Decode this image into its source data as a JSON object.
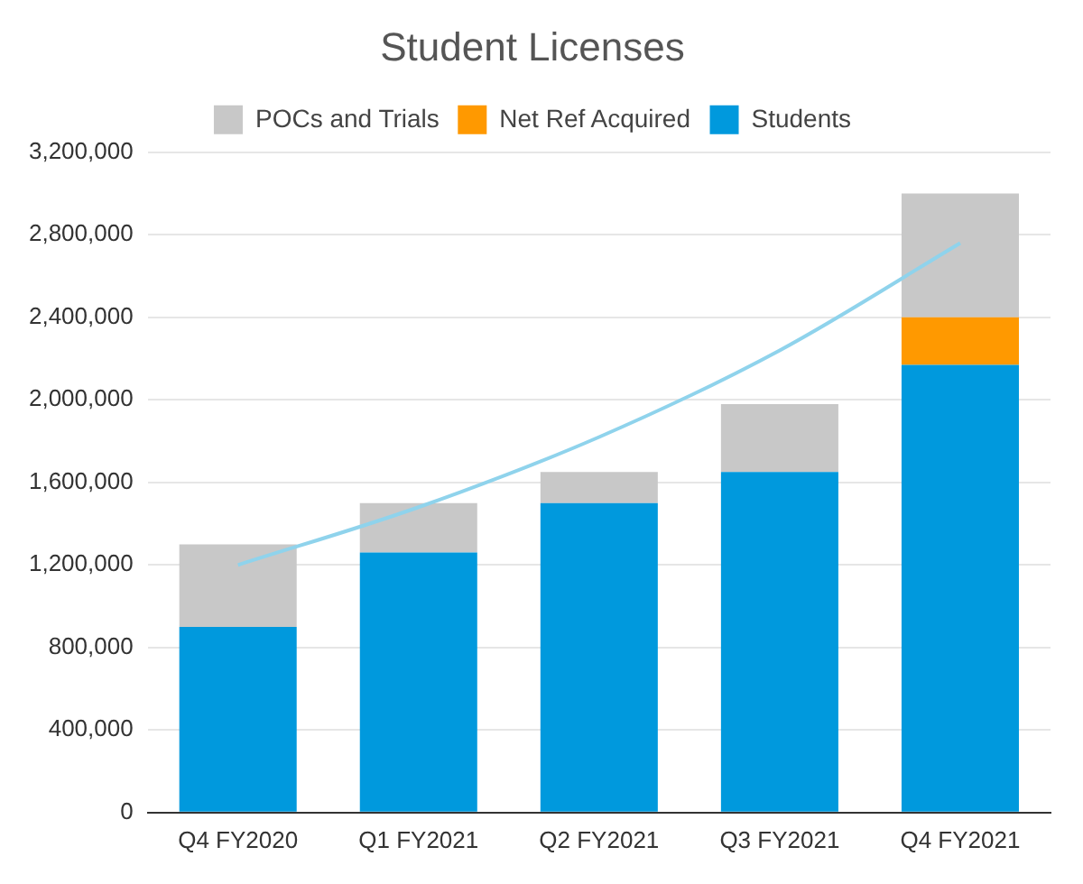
{
  "chart_data": {
    "type": "bar",
    "title": "Student Licenses",
    "stacked": true,
    "legend": "top",
    "grid": "y",
    "categories": [
      "Q4 FY2020",
      "Q1 FY2021",
      "Q2 FY2021",
      "Q3 FY2021",
      "Q4 FY2021"
    ],
    "series": [
      {
        "name": "Students",
        "color": "#0099dd",
        "values": [
          900000,
          1260000,
          1500000,
          1650000,
          2170000
        ]
      },
      {
        "name": "Net Ref Acquired",
        "color": "#ff9900",
        "values": [
          0,
          0,
          0,
          0,
          230000
        ]
      },
      {
        "name": "POCs and Trials",
        "color": "#c8c8c8",
        "values": [
          400000,
          240000,
          150000,
          330000,
          600000
        ]
      },
      {
        "type": "line",
        "color": "#8fd3ec",
        "marker": "none",
        "values": [
          1200000,
          1480000,
          1820000,
          2240000,
          2760000
        ]
      }
    ],
    "ylim": [
      0,
      3200000
    ],
    "yticks": [
      0,
      {
        "value": 400000,
        "label": "400,000"
      },
      {
        "value": 800000,
        "label": "800,000"
      },
      {
        "value": 1200000,
        "label": "1,200,000"
      },
      {
        "value": 1600000,
        "label": "1,600,000"
      },
      {
        "value": 2000000,
        "label": "2,000,000"
      },
      {
        "value": 2400000,
        "label": "2,400,000"
      },
      {
        "value": 2800000,
        "label": "2,800,000"
      },
      {
        "value": 3200000,
        "label": "3,200,000"
      }
    ]
  }
}
